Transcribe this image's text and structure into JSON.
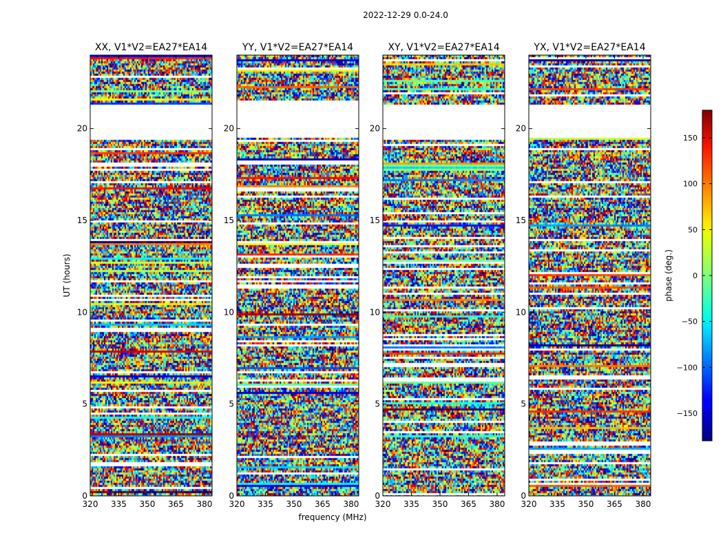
{
  "suptitle": "2022-12-29 0.0-24.0",
  "chart_data": {
    "type": "heatmap",
    "ylabel": "UT (hours)",
    "xlabel": "frequency (MHz)",
    "xlim": [
      320,
      384
    ],
    "ylim": [
      0,
      24
    ],
    "xticks": [
      "320",
      "335",
      "350",
      "365",
      "380"
    ],
    "yticks": [
      "0",
      "5",
      "10",
      "15",
      "20"
    ],
    "panels": [
      {
        "title": "XX, V1*V2=EA27*EA14"
      },
      {
        "title": "YY, V1*V2=EA27*EA14"
      },
      {
        "title": "XY, V1*V2=EA27*EA14"
      },
      {
        "title": "YX, V1*V2=EA27*EA14"
      }
    ],
    "colorbar": {
      "label": "phase (deg.)",
      "range": [
        -180,
        180
      ],
      "ticks": [
        "150",
        "100",
        "50",
        "0",
        "−50",
        "−100",
        "−150"
      ],
      "colormap": "jet"
    },
    "gaps_hours": [
      [
        19.6,
        21.3
      ]
    ]
  }
}
